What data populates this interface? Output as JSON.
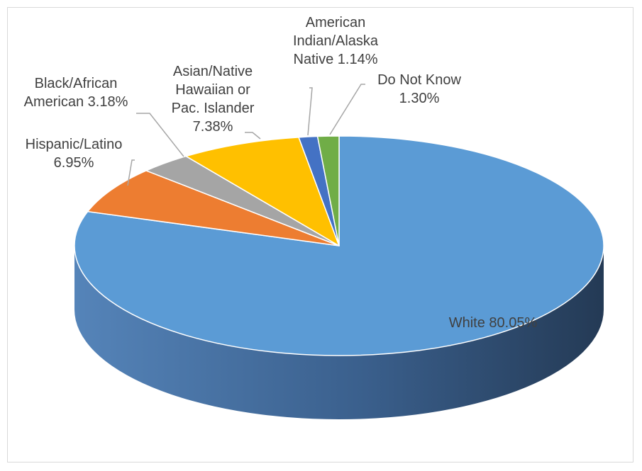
{
  "chart_data": {
    "type": "pie",
    "style": "3d",
    "title": "",
    "legend": "none",
    "slices": [
      {
        "label": "White",
        "value": 80.05,
        "display": "80.05%",
        "color": "#5b9bd5",
        "side_color": "#2e4f72"
      },
      {
        "label": "Hispanic/Latino",
        "value": 6.95,
        "display": "6.95%",
        "color": "#ed7d31",
        "side_color": "#8c4a1d"
      },
      {
        "label": "Black/African American",
        "value": 3.18,
        "display": "3.18%",
        "color": "#a5a5a5",
        "side_color": "#626262"
      },
      {
        "label": "Asian/Native Hawaiian or Pac. Islander",
        "value": 7.38,
        "display": "7.38%",
        "color": "#ffc000",
        "side_color": "#977200"
      },
      {
        "label": "American Indian/Alaska Native",
        "value": 1.14,
        "display": "1.14%",
        "color": "#4472c4",
        "side_color": "#284375"
      },
      {
        "label": "Do Not Know",
        "value": 1.3,
        "display": "1.30%",
        "color": "#70ad47",
        "side_color": "#43672a"
      }
    ],
    "data_labels": [
      {
        "lines": [
          "White 80.05%"
        ]
      },
      {
        "lines": [
          "Hispanic/Latino",
          "6.95%"
        ]
      },
      {
        "lines": [
          "Black/African",
          "American 3.18%"
        ]
      },
      {
        "lines": [
          "Asian/Native",
          "Hawaiian or",
          "Pac. Islander",
          "7.38%"
        ]
      },
      {
        "lines": [
          "American",
          "Indian/Alaska",
          "Native 1.14%"
        ]
      },
      {
        "lines": [
          "Do Not Know",
          "1.30%"
        ]
      }
    ]
  }
}
